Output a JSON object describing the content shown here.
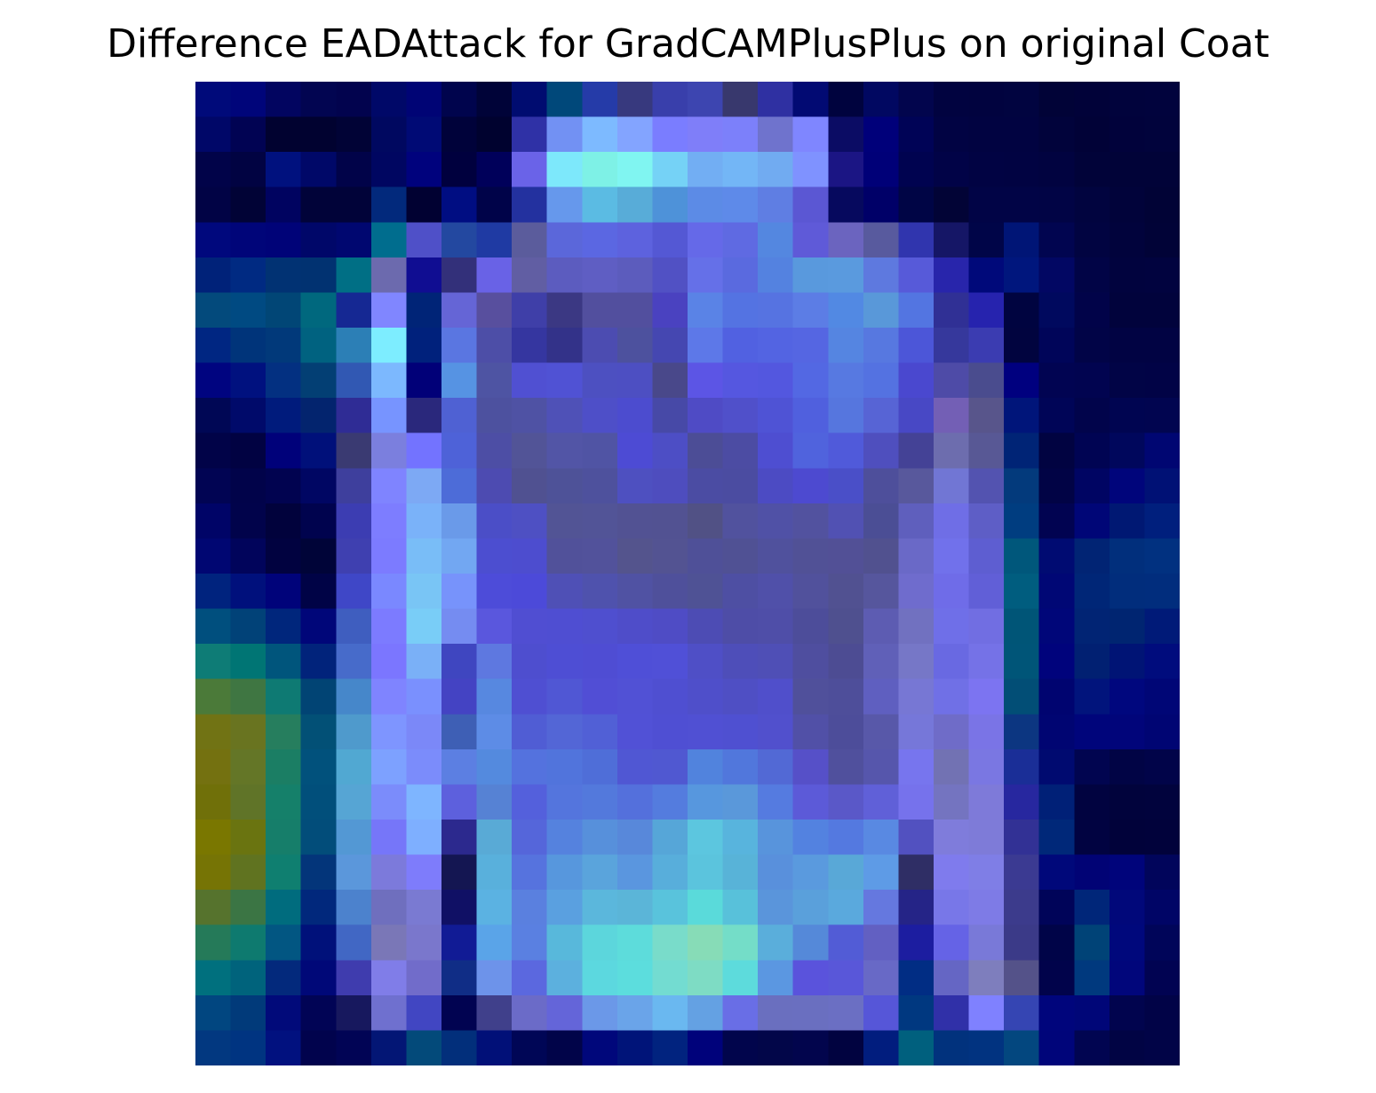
{
  "title": "Difference EADAttack for GradCAMPlusPlus on original Coat",
  "image": {
    "grid_size": 28,
    "background": "#ffffff",
    "rows": [
      [
        "#000a7a",
        "#00057a",
        "#020560",
        "#020551",
        "#02034e",
        "#000868",
        "#000475",
        "#00044d",
        "#000338",
        "#000c70",
        "#00487a",
        "#253ba8",
        "#37397e",
        "#393fab",
        "#3d45b0",
        "#38386d",
        "#2f30a2",
        "#020a73",
        "#00033e",
        "#010861",
        "#02054d",
        "#010340",
        "#01033f",
        "#010440",
        "#010337",
        "#010239",
        "#01033c",
        "#01033d"
      ],
      [
        "#000768",
        "#010353",
        "#010230",
        "#010230",
        "#010336",
        "#000860",
        "#000a75",
        "#00023a",
        "#00022f",
        "#2f31a6",
        "#7291f3",
        "#7dbaff",
        "#83a4ff",
        "#7a7dff",
        "#7f7ef9",
        "#7c80fa",
        "#6f73cd",
        "#7f86ff",
        "#0b0c64",
        "#00007a",
        "#000356",
        "#010343",
        "#010341",
        "#010341",
        "#01033b",
        "#010237",
        "#01023b",
        "#01033c"
      ],
      [
        "#010349",
        "#010342",
        "#00117e",
        "#000868",
        "#010349",
        "#000661",
        "#00027d",
        "#00003e",
        "#00005a",
        "#6a63e8",
        "#7de8fb",
        "#7ef1e6",
        "#80f5f1",
        "#75d2f6",
        "#72aef3",
        "#73b6f6",
        "#71abf1",
        "#7f92ff",
        "#1b1584",
        "#000078",
        "#000350",
        "#010347",
        "#010343",
        "#010342",
        "#010340",
        "#010339",
        "#010338",
        "#010338"
      ],
      [
        "#010345",
        "#010336",
        "#000360",
        "#010339",
        "#010339",
        "#02297c",
        "#010132",
        "#000d82",
        "#000349",
        "#23319f",
        "#6698ec",
        "#5bbbe3",
        "#58acd8",
        "#4e92d9",
        "#5c8be6",
        "#5e8ae9",
        "#5f7ee3",
        "#5b57d3",
        "#06095e",
        "#000068",
        "#000545",
        "#020436",
        "#010446",
        "#010446",
        "#010445",
        "#01043f",
        "#01033a",
        "#010336"
      ],
      [
        "#00087d",
        "#000579",
        "#000378",
        "#000769",
        "#000770",
        "#006d8e",
        "#4f50c8",
        "#2348a0",
        "#1f3aa3",
        "#5b5c9c",
        "#5b67da",
        "#5b67e2",
        "#5d62de",
        "#5458d4",
        "#6569e8",
        "#5f6ae2",
        "#5487e0",
        "#5f5ad8",
        "#6b64bf",
        "#585a9e",
        "#3035ae",
        "#151666",
        "#000548",
        "#001576",
        "#010550",
        "#010441",
        "#01033c",
        "#010337"
      ],
      [
        "#002279",
        "#002a82",
        "#013273",
        "#013271",
        "#006f85",
        "#6c6aae",
        "#100d92",
        "#33307a",
        "#6962e6",
        "#615ea3",
        "#5c5cbf",
        "#5f5ec3",
        "#5c5cbd",
        "#5151c4",
        "#6570e8",
        "#5a6adf",
        "#5482e0",
        "#5999dd",
        "#5a9ade",
        "#5e79df",
        "#575ad9",
        "#2825ab",
        "#00097a",
        "#00167d",
        "#020763",
        "#010446",
        "#01033e",
        "#01033f"
      ],
      [
        "#034a7c",
        "#004a82",
        "#014676",
        "#00687e",
        "#152893",
        "#8086ff",
        "#002477",
        "#6565d6",
        "#584f9e",
        "#3f3fa8",
        "#3b3883",
        "#524f9e",
        "#524f9e",
        "#4a42c0",
        "#5a83e6",
        "#5473e2",
        "#5673e1",
        "#5c7de5",
        "#5289e3",
        "#5998d9",
        "#5375e1",
        "#303095",
        "#2623ae",
        "#000440",
        "#00095e",
        "#010349",
        "#01033c",
        "#01033c"
      ],
      [
        "#002682",
        "#00347a",
        "#01397a",
        "#006280",
        "#2c7fb6",
        "#7dedff",
        "#00217c",
        "#5a76e1",
        "#4d4ea7",
        "#3536a0",
        "#333289",
        "#4c4cb1",
        "#4d519e",
        "#4547b1",
        "#5d78e8",
        "#5161e1",
        "#5364e2",
        "#5566e2",
        "#5585e1",
        "#5778e0",
        "#4c56d8",
        "#36389c",
        "#3b3cb1",
        "#01043f",
        "#000559",
        "#010447",
        "#010343",
        "#010343"
      ],
      [
        "#000480",
        "#00117f",
        "#033081",
        "#033f74",
        "#3158b3",
        "#7cb8fe",
        "#010078",
        "#5693e3",
        "#4e54a3",
        "#5050d2",
        "#5052d4",
        "#4d50c1",
        "#4d4fc2",
        "#49488a",
        "#5c55e5",
        "#5557e0",
        "#5357df",
        "#5368e3",
        "#5779e1",
        "#5472e1",
        "#4a48cf",
        "#4e4ba7",
        "#4a4c8e",
        "#00007f",
        "#010452",
        "#010450",
        "#010446",
        "#010346"
      ],
      [
        "#000755",
        "#000a6a",
        "#001b7c",
        "#03246e",
        "#2f2c95",
        "#7794ff",
        "#2a287c",
        "#4f61d3",
        "#4d519f",
        "#4f52a4",
        "#4f51b7",
        "#4e4fc8",
        "#4c4ccf",
        "#4749a7",
        "#4f4bc5",
        "#5050ca",
        "#4f53d5",
        "#5060de",
        "#5676de",
        "#5764d5",
        "#4848c5",
        "#735fb5",
        "#58558b",
        "#00157a",
        "#000557",
        "#01044b",
        "#000551",
        "#010550"
      ],
      [
        "#010348",
        "#010242",
        "#00017a",
        "#00107a",
        "#3a3a72",
        "#7b7fde",
        "#7373ff",
        "#4e62d8",
        "#4d4ea5",
        "#525497",
        "#5255a6",
        "#5054a4",
        "#4d4bd4",
        "#4d4ec5",
        "#4c4d96",
        "#4c4ca3",
        "#4e4ed1",
        "#5063dd",
        "#505ada",
        "#4f4fbe",
        "#444296",
        "#6d6dae",
        "#585895",
        "#002476",
        "#010341",
        "#000453",
        "#00075c",
        "#000672"
      ],
      [
        "#010453",
        "#01034a",
        "#010350",
        "#000663",
        "#3e3f9d",
        "#7f84ff",
        "#7da9f4",
        "#4d6cd8",
        "#4d4bb1",
        "#505191",
        "#4e5298",
        "#4e519d",
        "#4e50c0",
        "#4e4dbe",
        "#4b4ca3",
        "#4b4ca1",
        "#4c4bc3",
        "#4d4ad0",
        "#4a4fc8",
        "#4e4f9b",
        "#58589c",
        "#7176d4",
        "#5353b0",
        "#033a7c",
        "#010345",
        "#000563",
        "#00057b",
        "#001175"
      ],
      [
        "#000467",
        "#01034b",
        "#01023c",
        "#00034e",
        "#3c3db2",
        "#7d7dff",
        "#7ab2f9",
        "#6a9ae9",
        "#4b4ec7",
        "#4e50c3",
        "#525495",
        "#525497",
        "#525293",
        "#525292",
        "#515185",
        "#51529e",
        "#5051a6",
        "#52529f",
        "#5151b3",
        "#4b4e95",
        "#5f5fbd",
        "#6f6ee6",
        "#5e5ec6",
        "#003d80",
        "#010351",
        "#000677",
        "#001873",
        "#001f7d"
      ],
      [
        "#000672",
        "#01045b",
        "#010240",
        "#000438",
        "#3f40b0",
        "#7c7bff",
        "#79bdf7",
        "#72a7f2",
        "#4c4ed0",
        "#4d4dcf",
        "#51519a",
        "#52529b",
        "#54548d",
        "#535392",
        "#4f5098",
        "#505194",
        "#50519d",
        "#515196",
        "#525096",
        "#51518f",
        "#6a69c7",
        "#7171eb",
        "#5e5ed1",
        "#00577b",
        "#000b72",
        "#012474",
        "#012f7c",
        "#013180"
      ],
      [
        "#00237e",
        "#00107c",
        "#00037a",
        "#000346",
        "#3f47c7",
        "#7a88ff",
        "#79c5f5",
        "#7793fb",
        "#4d4cd9",
        "#4c4ad9",
        "#4f50b6",
        "#4f52ad",
        "#5052a3",
        "#4f509b",
        "#4f5295",
        "#4e4fa3",
        "#5050a9",
        "#51519c",
        "#515191",
        "#56569d",
        "#6f6ccd",
        "#6f6ce8",
        "#615fd7",
        "#005d7f",
        "#000775",
        "#002677",
        "#012d7c",
        "#012d7d"
      ],
      [
        "#004f7e",
        "#014278",
        "#00267c",
        "#000679",
        "#3f5ebf",
        "#7c7bff",
        "#79cdf7",
        "#758cf1",
        "#5a57dd",
        "#504ed2",
        "#4f4ed2",
        "#4f4fcf",
        "#4f4dc9",
        "#4f4cc5",
        "#4d4cb4",
        "#4e4da7",
        "#4f4ea8",
        "#4d4d9a",
        "#4f508f",
        "#5d5cb2",
        "#7171c0",
        "#6f6fe8",
        "#716ee2",
        "#005577",
        "#000679",
        "#012474",
        "#002571",
        "#001a78"
      ],
      [
        "#0e7c76",
        "#007574",
        "#00557c",
        "#01237b",
        "#476bca",
        "#7b76ff",
        "#7ab0f7",
        "#3f46c0",
        "#5e78e0",
        "#4e4ecf",
        "#4e4ed4",
        "#4f4dd3",
        "#4f4fd7",
        "#5050d7",
        "#4f4fc6",
        "#4e4eb9",
        "#4f4fb6",
        "#4f4e9f",
        "#4d4c93",
        "#6060b8",
        "#7677c7",
        "#6969e2",
        "#7572e7",
        "#005578",
        "#00037c",
        "#012072",
        "#001475",
        "#000c7d"
      ],
      [
        "#4b7a39",
        "#3f7642",
        "#0e7a73",
        "#014474",
        "#4687ca",
        "#7f84ff",
        "#7a90fe",
        "#4443c3",
        "#5788e0",
        "#4f4fd2",
        "#5057d4",
        "#514ed5",
        "#5151d5",
        "#4f4fd1",
        "#4f4fca",
        "#4f4fc4",
        "#504fcb",
        "#50509b",
        "#4e4e9a",
        "#5f5fc0",
        "#7777d4",
        "#7070e6",
        "#7c74f1",
        "#024e76",
        "#000470",
        "#01147c",
        "#00077e",
        "#000676"
      ],
      [
        "#717314",
        "#697420",
        "#267e5e",
        "#025076",
        "#4f9acc",
        "#7e95ff",
        "#7b88f8",
        "#3e5fb5",
        "#5d8ce6",
        "#505dd4",
        "#5366d6",
        "#5160d6",
        "#5151d6",
        "#4f4fd3",
        "#5050d3",
        "#4f50d1",
        "#5150cd",
        "#5150a7",
        "#4d4d9a",
        "#5858a9",
        "#7677d9",
        "#6f6cc8",
        "#7a74e6",
        "#0c3681",
        "#000572",
        "#00057b",
        "#01057a",
        "#000573"
      ],
      [
        "#747110",
        "#647627",
        "#1b7e64",
        "#01517c",
        "#51a8d2",
        "#7da1ff",
        "#7b8cfb",
        "#5c7fe2",
        "#548ade",
        "#5472de",
        "#5174dc",
        "#4f6ed8",
        "#5057d3",
        "#5058d1",
        "#5183dd",
        "#5177dc",
        "#5269d5",
        "#5650c8",
        "#50509d",
        "#5656ac",
        "#7775ee",
        "#7272b3",
        "#7a77e2",
        "#1a2e97",
        "#000a70",
        "#010550",
        "#010445",
        "#010449"
      ],
      [
        "#707009",
        "#607428",
        "#15806a",
        "#014f7b",
        "#56a5d4",
        "#7b8cfb",
        "#7eb5ff",
        "#5d60dd",
        "#5682d4",
        "#5460dc",
        "#5475dd",
        "#5379dc",
        "#5470dc",
        "#547cde",
        "#5797de",
        "#5a98da",
        "#557be0",
        "#5c5ad8",
        "#5a58c8",
        "#6060d8",
        "#7672ec",
        "#7474c0",
        "#7e7ad9",
        "#27279f",
        "#002077",
        "#010340",
        "#01033c",
        "#01033d"
      ],
      [
        "#7a7700",
        "#6a7410",
        "#167e6a",
        "#024d7a",
        "#5398d4",
        "#7676f9",
        "#7eafff",
        "#2c298e",
        "#59aad6",
        "#5566da",
        "#5582de",
        "#5790db",
        "#5888da",
        "#56a6d8",
        "#5cc6df",
        "#58b4dd",
        "#5894dc",
        "#5382e0",
        "#5479e0",
        "#5989e2",
        "#5251c0",
        "#7f7cdb",
        "#7e7bd8",
        "#323195",
        "#002879",
        "#010341",
        "#01023a",
        "#01023b"
      ],
      [
        "#767405",
        "#607320",
        "#0f7f70",
        "#03357a",
        "#5b97db",
        "#7c7adb",
        "#7e7cfb",
        "#141652",
        "#59b0dc",
        "#5673de",
        "#5797dd",
        "#5aa4dc",
        "#5a96df",
        "#58aedb",
        "#5bc4dd",
        "#58b3d8",
        "#5990dc",
        "#5a9ade",
        "#59a8d7",
        "#5e9be6",
        "#2f2e65",
        "#7f7bed",
        "#7f7ee6",
        "#3b3a92",
        "#00087a",
        "#010375",
        "#00047b",
        "#01055b"
      ],
      [
        "#56732d",
        "#3b7544",
        "#006c7e",
        "#01287c",
        "#4c82cd",
        "#6f6fbe",
        "#7a7ad2",
        "#101065",
        "#5bb2e2",
        "#5a80df",
        "#5aa0e0",
        "#5bb7dc",
        "#5bb5d8",
        "#59c3dc",
        "#5adada",
        "#58c1da",
        "#5a95db",
        "#5aa0db",
        "#5aa9dd",
        "#6578df",
        "#252487",
        "#7877e8",
        "#7e7be6",
        "#3c3b8c",
        "#000459",
        "#002679",
        "#01087a",
        "#000566"
      ],
      [
        "#257a59",
        "#0e7a6f",
        "#025682",
        "#00117a",
        "#4167c4",
        "#7a77b7",
        "#7a77cc",
        "#111b95",
        "#5aa4e8",
        "#5a80e1",
        "#58b8db",
        "#5cd6dc",
        "#5ddcdb",
        "#79dcca",
        "#87dcb7",
        "#74ddc8",
        "#5aaedb",
        "#5589d9",
        "#525cd6",
        "#6260c2",
        "#1c1da0",
        "#6563e6",
        "#7979d8",
        "#3b3a88",
        "#000448",
        "#004377",
        "#00087c",
        "#000559"
      ],
      [
        "#00707e",
        "#00637c",
        "#03297c",
        "#000878",
        "#3f3cae",
        "#807de8",
        "#716cca",
        "#102d86",
        "#6d93ea",
        "#5b68df",
        "#5cb0de",
        "#5cd8df",
        "#5cdddd",
        "#73dcd1",
        "#7edcc4",
        "#5ddbdc",
        "#5b97e1",
        "#5a53dc",
        "#5957d9",
        "#6869c6",
        "#012d84",
        "#6566c4",
        "#7e7ebd",
        "#545289",
        "#01034b",
        "#00397e",
        "#01067b",
        "#010352"
      ],
      [
        "#014680",
        "#013a7a",
        "#010a7a",
        "#010455",
        "#17185e",
        "#6f70cf",
        "#4146c2",
        "#010351",
        "#40408b",
        "#6b6bc8",
        "#6465d9",
        "#6b98e8",
        "#6aa4e9",
        "#6ab8f0",
        "#64a1e3",
        "#696ee6",
        "#6a6fbf",
        "#6a6fc0",
        "#6b6fc3",
        "#5656d8",
        "#003880",
        "#3030a8",
        "#7f81ff",
        "#3545b3",
        "#00057c",
        "#000678",
        "#01044e",
        "#010347"
      ],
      [
        "#023880",
        "#003481",
        "#01117f",
        "#01034d",
        "#010455",
        "#031675",
        "#034a7a",
        "#022f7b",
        "#011078",
        "#000656",
        "#010449",
        "#00077b",
        "#001479",
        "#01237f",
        "#00027b",
        "#01054c",
        "#020649",
        "#02054d",
        "#010340",
        "#011d7e",
        "#00607e",
        "#01327d",
        "#013380",
        "#03477f",
        "#00057a",
        "#010551",
        "#010444",
        "#010447"
      ]
    ]
  }
}
